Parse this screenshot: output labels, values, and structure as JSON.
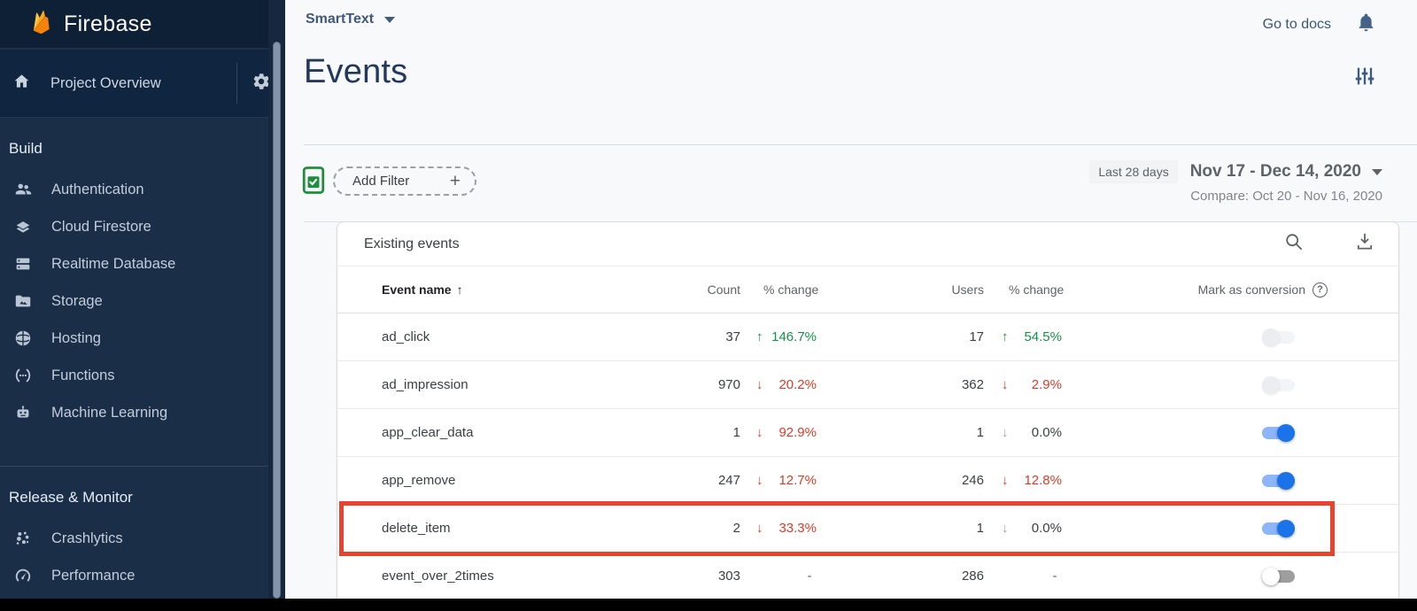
{
  "brand": {
    "name": "Firebase"
  },
  "topbar": {
    "project_name": "SmartText",
    "go_to_docs": "Go to docs"
  },
  "sidebar": {
    "project_overview": "Project Overview",
    "sections": [
      {
        "label": "Build",
        "items": [
          {
            "icon": "users-icon",
            "label": "Authentication"
          },
          {
            "icon": "firestore-icon",
            "label": "Cloud Firestore"
          },
          {
            "icon": "database-icon",
            "label": "Realtime Database"
          },
          {
            "icon": "storage-folder-icon",
            "label": "Storage"
          },
          {
            "icon": "globe-icon",
            "label": "Hosting"
          },
          {
            "icon": "functions-icon",
            "label": "Functions"
          },
          {
            "icon": "robot-icon",
            "label": "Machine Learning"
          }
        ]
      },
      {
        "label": "Release & Monitor",
        "items": [
          {
            "icon": "crashlytics-icon",
            "label": "Crashlytics"
          },
          {
            "icon": "speedometer-icon",
            "label": "Performance"
          }
        ]
      }
    ]
  },
  "page": {
    "title": "Events"
  },
  "filter_bar": {
    "add_filter_label": "Add Filter",
    "plus": "+"
  },
  "date_selector": {
    "preset_chip": "Last 28 days",
    "range": "Nov 17 - Dec 14, 2020",
    "compare": "Compare: Oct 20 - Nov 16, 2020"
  },
  "events_table": {
    "title": "Existing events",
    "sort_arrow": "↑",
    "help_glyph": "?",
    "columns": {
      "event_name": "Event name",
      "count": "Count",
      "count_change": "% change",
      "users": "Users",
      "users_change": "% change",
      "conversion": "Mark as conversion"
    },
    "rows": [
      {
        "name": "ad_click",
        "count": "37",
        "count_change": {
          "dir": "up",
          "text": "146.7%",
          "tone": "pos"
        },
        "users": "17",
        "users_change": {
          "dir": "up",
          "text": "54.5%",
          "tone": "pos"
        },
        "toggle": "disabled",
        "highlight": false
      },
      {
        "name": "ad_impression",
        "count": "970",
        "count_change": {
          "dir": "down",
          "text": "20.2%",
          "tone": "neg"
        },
        "users": "362",
        "users_change": {
          "dir": "down",
          "text": "2.9%",
          "tone": "neg"
        },
        "toggle": "disabled",
        "highlight": false
      },
      {
        "name": "app_clear_data",
        "count": "1",
        "count_change": {
          "dir": "down",
          "text": "92.9%",
          "tone": "neg"
        },
        "users": "1",
        "users_change": {
          "dir": "down",
          "text": "0.0%",
          "tone": "flat"
        },
        "toggle": "on",
        "highlight": false
      },
      {
        "name": "app_remove",
        "count": "247",
        "count_change": {
          "dir": "down",
          "text": "12.7%",
          "tone": "neg"
        },
        "users": "246",
        "users_change": {
          "dir": "down",
          "text": "12.8%",
          "tone": "neg"
        },
        "toggle": "on",
        "highlight": false
      },
      {
        "name": "delete_item",
        "count": "2",
        "count_change": {
          "dir": "down",
          "text": "33.3%",
          "tone": "neg"
        },
        "users": "1",
        "users_change": {
          "dir": "down",
          "text": "0.0%",
          "tone": "flat"
        },
        "toggle": "on",
        "highlight": true
      },
      {
        "name": "event_over_2times",
        "count": "303",
        "count_change": {
          "dir": null,
          "text": "-",
          "tone": "none"
        },
        "users": "286",
        "users_change": {
          "dir": null,
          "text": "-",
          "tone": "none"
        },
        "toggle": "off",
        "highlight": false
      }
    ]
  },
  "colors": {
    "positive": "#149148",
    "negative": "#dd3a26",
    "neutral_arrow": "#9aa0a6",
    "toggle_on_knob": "#1a73e8",
    "toggle_on_track": "#8cb6f8",
    "highlight_box": "#e8432c",
    "sidebar_bg": "#1b2e47",
    "filter_health": "#1e8e3e"
  }
}
